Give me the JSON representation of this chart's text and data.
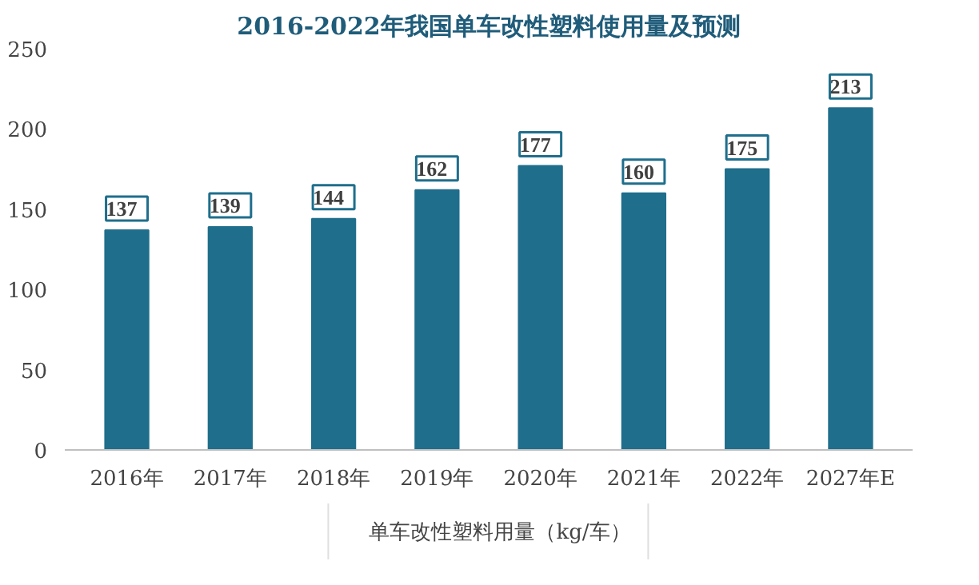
{
  "chart_data": {
    "type": "bar",
    "title": "2016-2022年我国单车改性塑料使用量及预测",
    "categories": [
      "2016年",
      "2017年",
      "2018年",
      "2019年",
      "2020年",
      "2021年",
      "2022年",
      "2027年E"
    ],
    "series": [
      {
        "name": "单车改性塑料用量（kg/车）",
        "color": "#1f6e8c",
        "values": [
          137,
          139,
          144,
          162,
          177,
          160,
          175,
          213
        ]
      }
    ],
    "ylim": [
      0,
      250
    ],
    "yticks": [
      0,
      50,
      100,
      150,
      200,
      250
    ],
    "grid": false,
    "legend": "bottom",
    "data_labels": true
  }
}
